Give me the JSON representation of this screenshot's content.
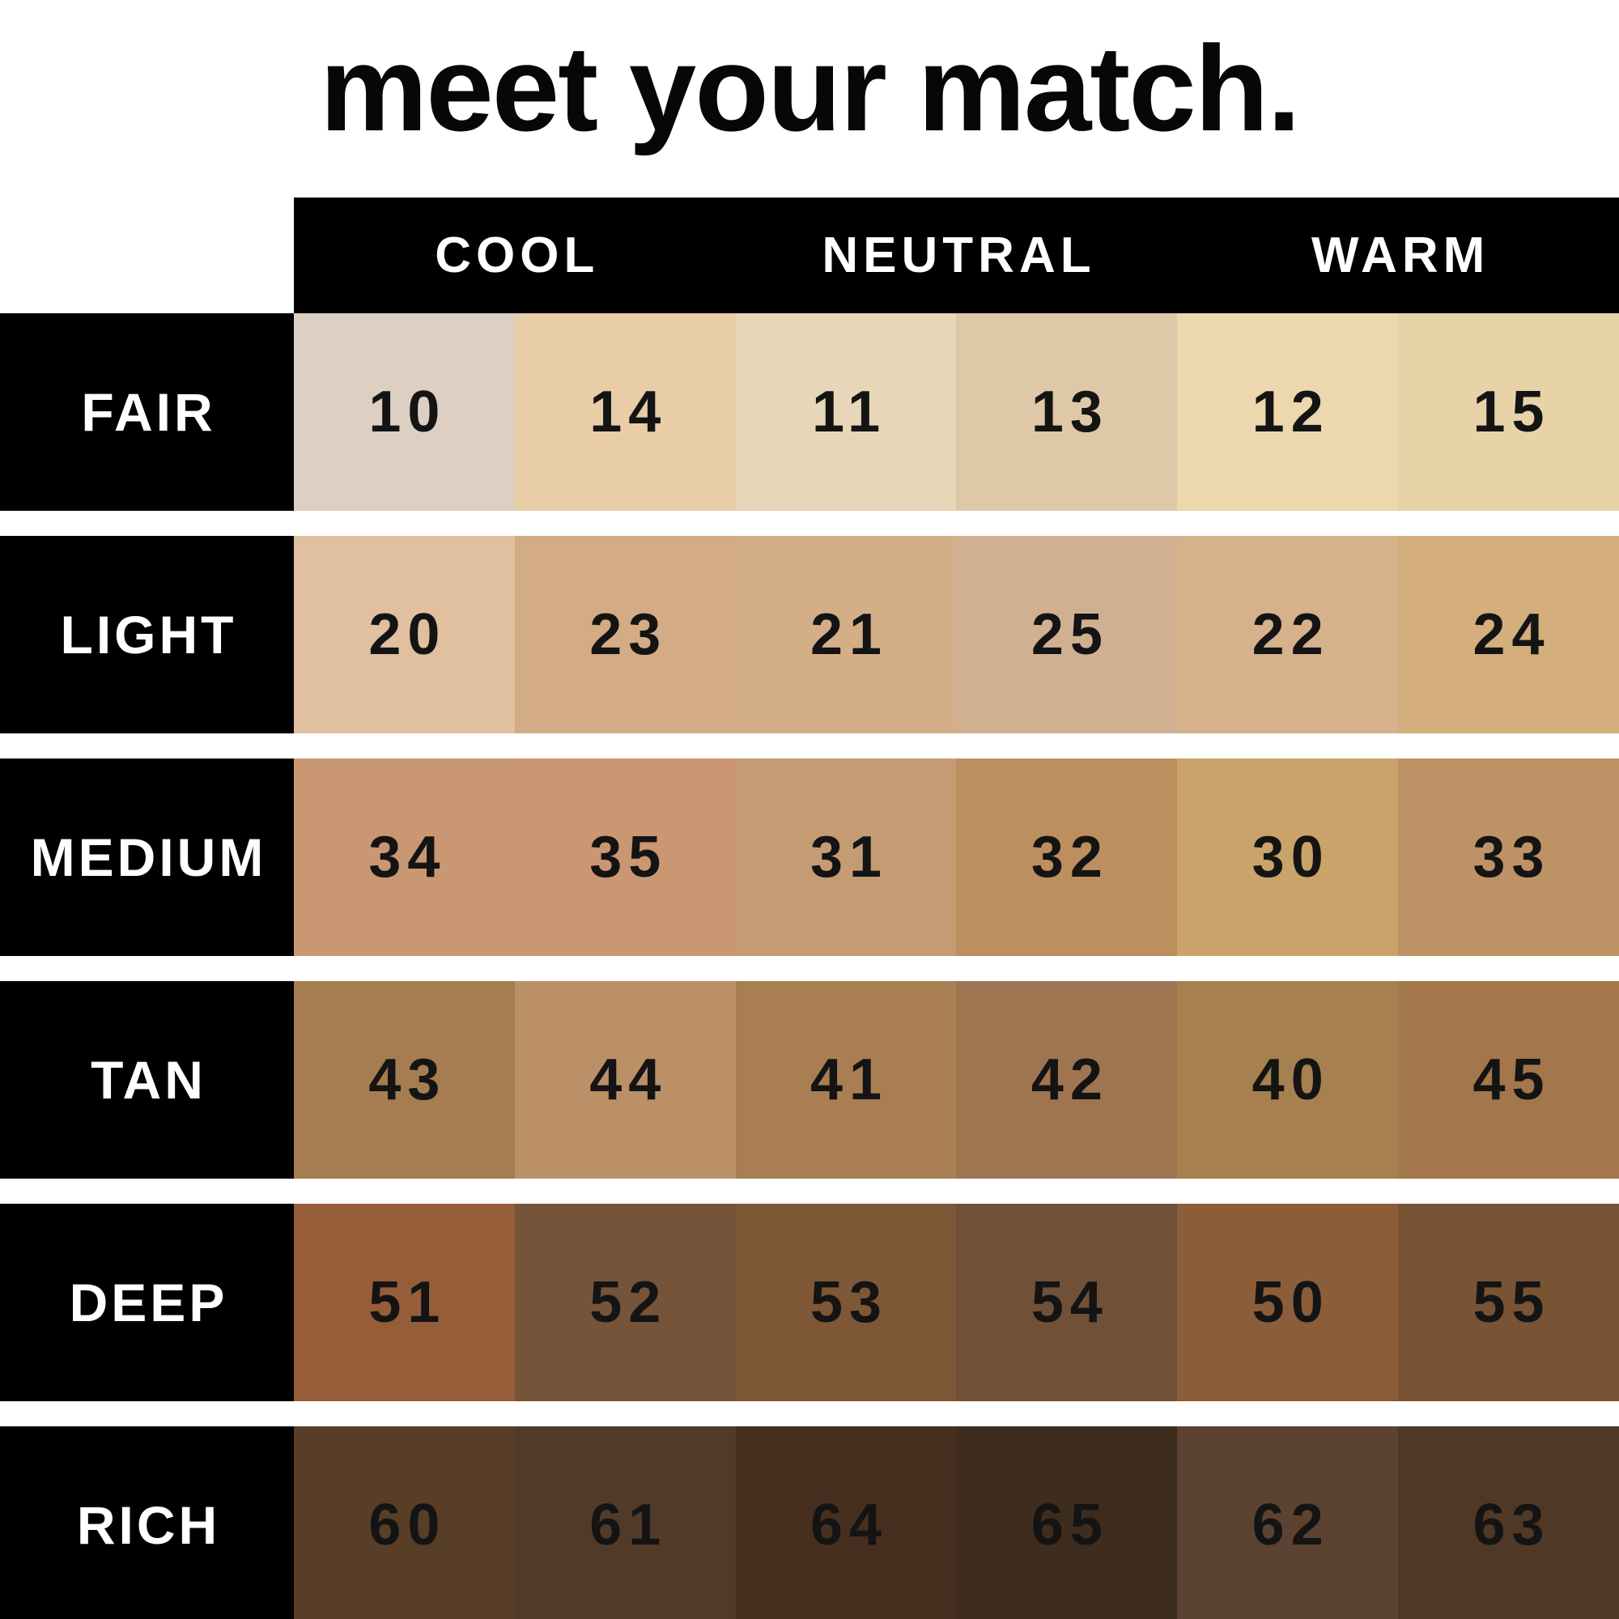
{
  "title": "meet your match.",
  "colors": {
    "background": "#ffffff",
    "bar": "#000000",
    "header_text": "#ffffff",
    "row_label_text": "#ffffff",
    "number_text": "#141414"
  },
  "chart_data": {
    "type": "table",
    "title": "meet your match.",
    "column_groups": [
      {
        "label": "COOL",
        "span": 2
      },
      {
        "label": "NEUTRAL",
        "span": 2
      },
      {
        "label": "WARM",
        "span": 2
      }
    ],
    "rows": [
      {
        "label": "FAIR",
        "shades": [
          {
            "number": "10",
            "undertone": "COOL",
            "hex": "#ddcfc1"
          },
          {
            "number": "14",
            "undertone": "COOL",
            "hex": "#e8cda7"
          },
          {
            "number": "11",
            "undertone": "NEUTRAL",
            "hex": "#e7d6b8"
          },
          {
            "number": "13",
            "undertone": "NEUTRAL",
            "hex": "#dfc8a8"
          },
          {
            "number": "12",
            "undertone": "WARM",
            "hex": "#ecd7ae"
          },
          {
            "number": "15",
            "undertone": "WARM",
            "hex": "#e8d3a8"
          }
        ]
      },
      {
        "label": "LIGHT",
        "shades": [
          {
            "number": "20",
            "undertone": "COOL",
            "hex": "#e0c09e"
          },
          {
            "number": "23",
            "undertone": "COOL",
            "hex": "#d3ac86"
          },
          {
            "number": "21",
            "undertone": "NEUTRAL",
            "hex": "#d4ae87"
          },
          {
            "number": "25",
            "undertone": "NEUTRAL",
            "hex": "#d1b092"
          },
          {
            "number": "22",
            "undertone": "WARM",
            "hex": "#d5b18c"
          },
          {
            "number": "24",
            "undertone": "WARM",
            "hex": "#d4ae7c"
          }
        ]
      },
      {
        "label": "MEDIUM",
        "shades": [
          {
            "number": "34",
            "undertone": "COOL",
            "hex": "#c99873"
          },
          {
            "number": "35",
            "undertone": "COOL",
            "hex": "#cb9672"
          },
          {
            "number": "31",
            "undertone": "NEUTRAL",
            "hex": "#c59b73"
          },
          {
            "number": "32",
            "undertone": "NEUTRAL",
            "hex": "#bd8e5e"
          },
          {
            "number": "30",
            "undertone": "WARM",
            "hex": "#c9a369"
          },
          {
            "number": "33",
            "undertone": "WARM",
            "hex": "#bd9366"
          }
        ]
      },
      {
        "label": "TAN",
        "shades": [
          {
            "number": "43",
            "undertone": "COOL",
            "hex": "#a67d50"
          },
          {
            "number": "44",
            "undertone": "COOL",
            "hex": "#bc9066"
          },
          {
            "number": "41",
            "undertone": "NEUTRAL",
            "hex": "#a87e52"
          },
          {
            "number": "42",
            "undertone": "NEUTRAL",
            "hex": "#9f7450"
          },
          {
            "number": "40",
            "undertone": "WARM",
            "hex": "#a6804f"
          },
          {
            "number": "45",
            "undertone": "WARM",
            "hex": "#a3764b"
          }
        ]
      },
      {
        "label": "DEEP",
        "shades": [
          {
            "number": "51",
            "undertone": "COOL",
            "hex": "#955e39"
          },
          {
            "number": "52",
            "undertone": "COOL",
            "hex": "#765439"
          },
          {
            "number": "53",
            "undertone": "NEUTRAL",
            "hex": "#7e5737"
          },
          {
            "number": "54",
            "undertone": "NEUTRAL",
            "hex": "#705138"
          },
          {
            "number": "50",
            "undertone": "WARM",
            "hex": "#8c5d39"
          },
          {
            "number": "55",
            "undertone": "WARM",
            "hex": "#785334"
          }
        ]
      },
      {
        "label": "RICH",
        "shades": [
          {
            "number": "60",
            "undertone": "COOL",
            "hex": "#583d27"
          },
          {
            "number": "61",
            "undertone": "COOL",
            "hex": "#523a29"
          },
          {
            "number": "64",
            "undertone": "NEUTRAL",
            "hex": "#462f1f"
          },
          {
            "number": "65",
            "undertone": "NEUTRAL",
            "hex": "#3e2c1e"
          },
          {
            "number": "62",
            "undertone": "WARM",
            "hex": "#5c4230"
          },
          {
            "number": "63",
            "undertone": "WARM",
            "hex": "#503826"
          }
        ]
      }
    ]
  }
}
